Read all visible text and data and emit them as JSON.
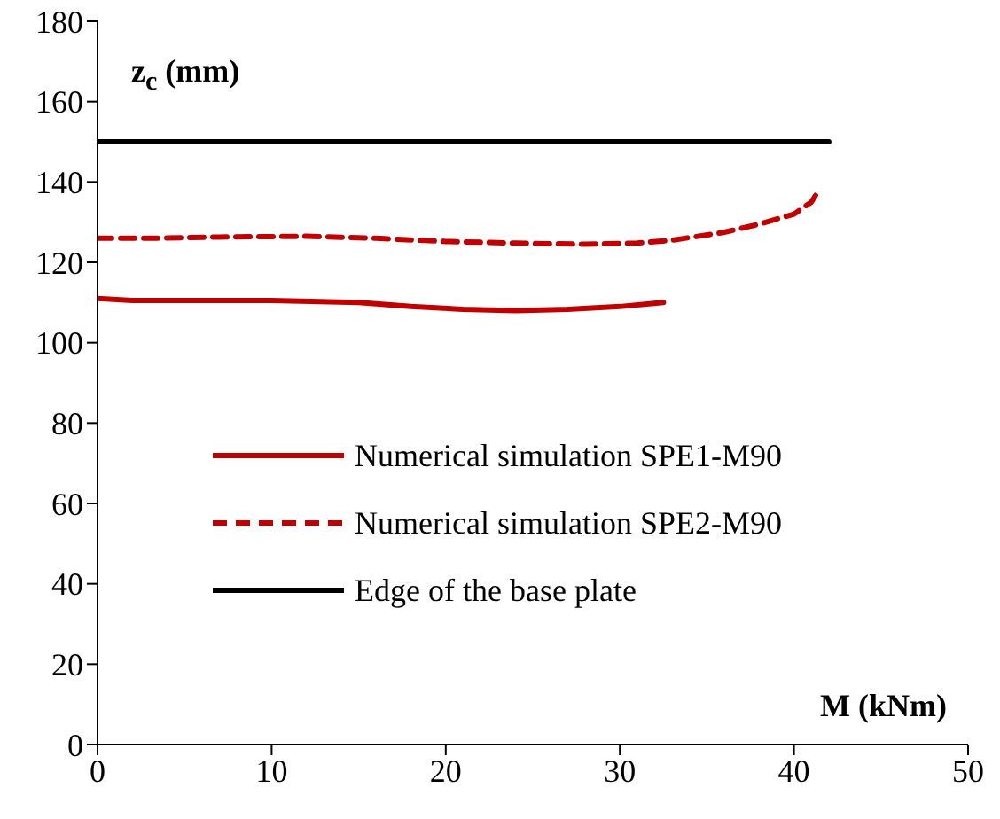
{
  "chart_data": {
    "type": "line",
    "xlabel": "M (kNm)",
    "ylabel": "z$_{c}$ (mm)",
    "xlim": [
      0,
      50
    ],
    "xticks": [
      0,
      10,
      20,
      30,
      40,
      50
    ],
    "ylim": [
      0,
      180
    ],
    "yticks": [
      0,
      20,
      40,
      60,
      80,
      100,
      120,
      140,
      160,
      180
    ],
    "grid": false,
    "legend": "left",
    "marker": "none",
    "series": [
      {
        "name": "Numerical simulation SPE1-M90",
        "color": "#c00000",
        "line_style": "solid",
        "x": [
          0,
          2,
          5,
          10,
          15,
          18,
          21,
          24,
          27,
          30,
          32.5
        ],
        "values": [
          111,
          110.5,
          110.5,
          110.5,
          110,
          109,
          108.3,
          108,
          108.3,
          109,
          110
        ]
      },
      {
        "name": "Numerical simulation SPE2-M90",
        "color": "#c00000",
        "line_style": "dashed",
        "x": [
          0,
          3,
          7,
          12,
          16,
          20,
          24,
          28,
          31,
          33,
          36,
          38,
          40,
          41,
          41.5
        ],
        "values": [
          126,
          126,
          126.3,
          126.5,
          126,
          125.2,
          124.8,
          124.5,
          124.8,
          125.5,
          127.5,
          129.5,
          132,
          135,
          138.5
        ]
      },
      {
        "name": "Edge of the base plate",
        "color": "#000000",
        "line_style": "solid",
        "x": [
          0,
          42
        ],
        "values": [
          150,
          150
        ]
      }
    ]
  }
}
